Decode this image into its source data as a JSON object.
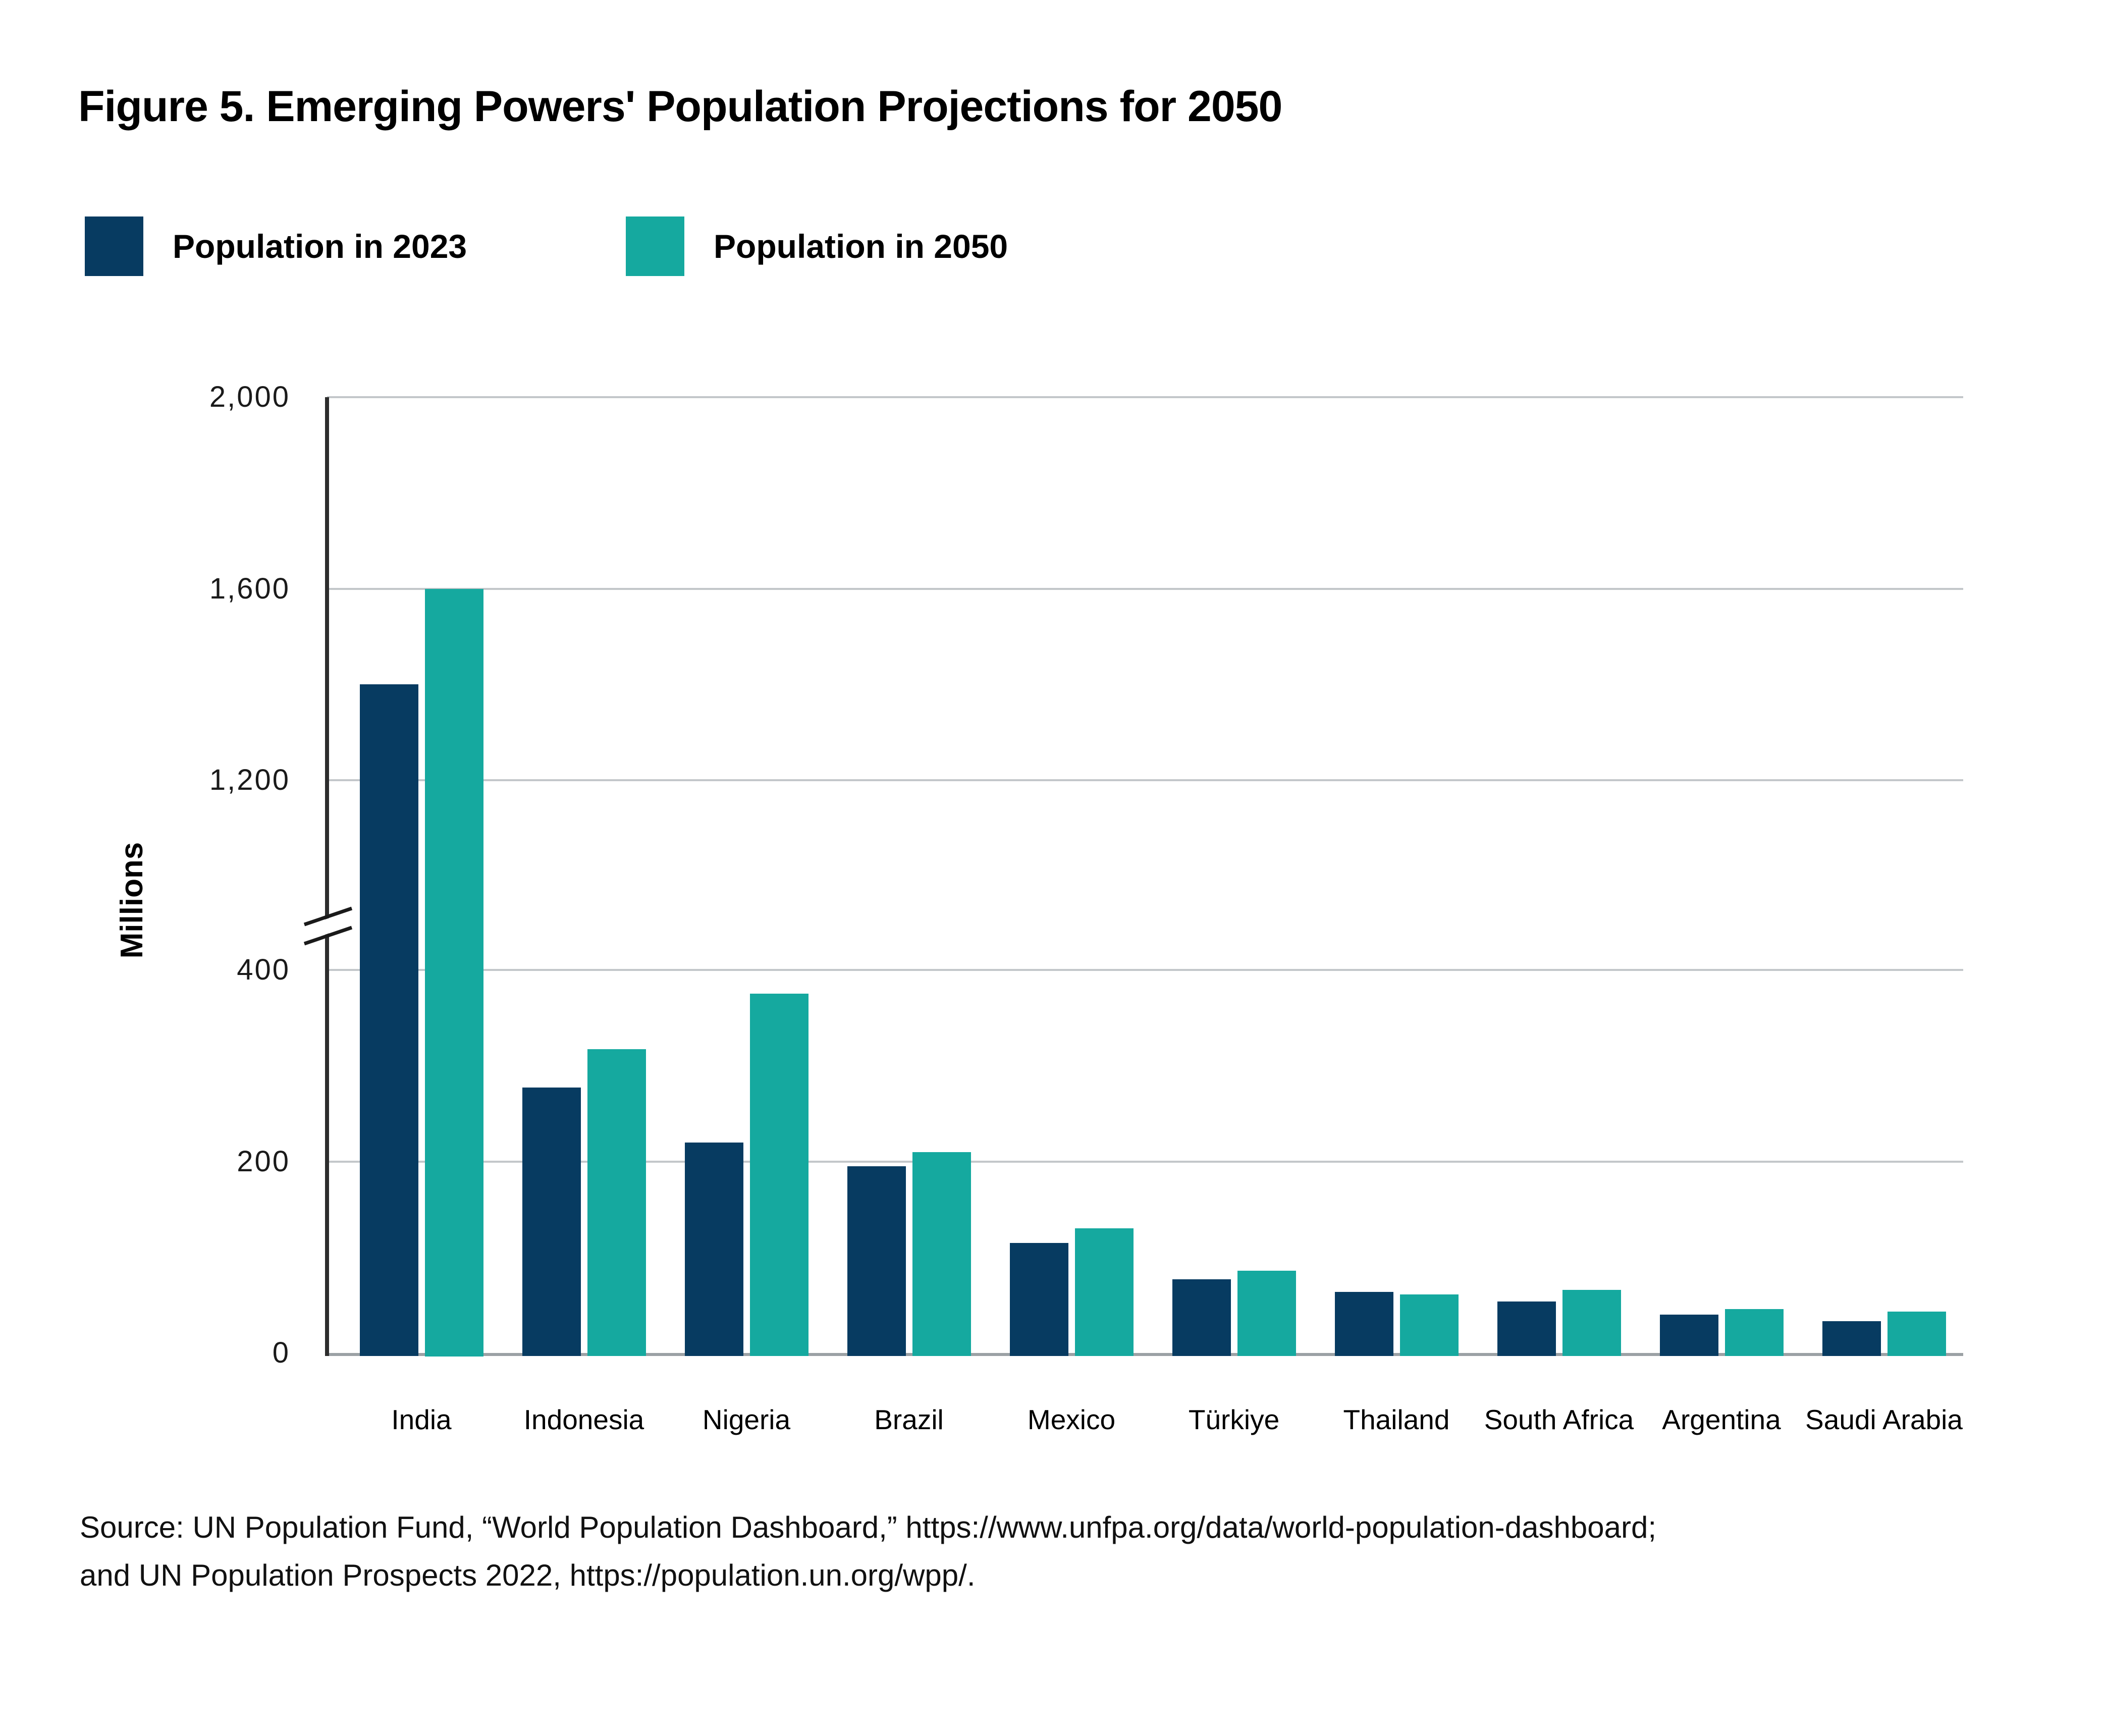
{
  "page": {
    "title": "Figure 5. Emerging Powers' Population Projections for 2050"
  },
  "source": {
    "line1": "Source: UN Population Fund, “World Population Dashboard,” https://www.unfpa.org/data/world-population-dashboard;",
    "line2": "and UN Population Prospects 2022,  https://population.un.org/wpp/."
  },
  "colors": {
    "series_2023": "#073b61",
    "series_2050": "#15a99f",
    "gridline": "#c3c7ca",
    "baseline": "#9ba1a5",
    "y_axis_line": "#2d2d2d",
    "text": "#000000"
  },
  "chart_data": {
    "type": "bar",
    "title": "Figure 5. Emerging Powers' Population Projections for 2050",
    "xlabel": "",
    "ylabel": "Millions",
    "unit": "millions of people",
    "grid": true,
    "legend_position": "top-left",
    "categories": [
      "India",
      "Indonesia",
      "Nigeria",
      "Brazil",
      "Mexico",
      "Türkiye",
      "Thailand",
      "South Africa",
      "Argentina",
      "Saudi Arabia"
    ],
    "series": [
      {
        "name": "Population in 2023",
        "color": "#073b61",
        "values": [
          1400,
          277,
          220,
          195,
          115,
          77,
          64,
          54,
          40,
          33
        ]
      },
      {
        "name": "Population in 2050",
        "color": "#15a99f",
        "values": [
          1600,
          317,
          375,
          210,
          130,
          86,
          61,
          66,
          46,
          43
        ]
      }
    ],
    "y_axis": {
      "axis_break": true,
      "break_between": [
        400,
        1200
      ],
      "lower_segment_range": [
        0,
        430
      ],
      "upper_segment_range": [
        1200,
        2000
      ],
      "ticks": [
        {
          "label": "0",
          "value": 0
        },
        {
          "label": "200",
          "value": 200
        },
        {
          "label": "400",
          "value": 400
        },
        {
          "label": "1,200",
          "value": 1200
        },
        {
          "label": "1,600",
          "value": 1600
        },
        {
          "label": "2,000",
          "value": 2000
        }
      ]
    }
  }
}
